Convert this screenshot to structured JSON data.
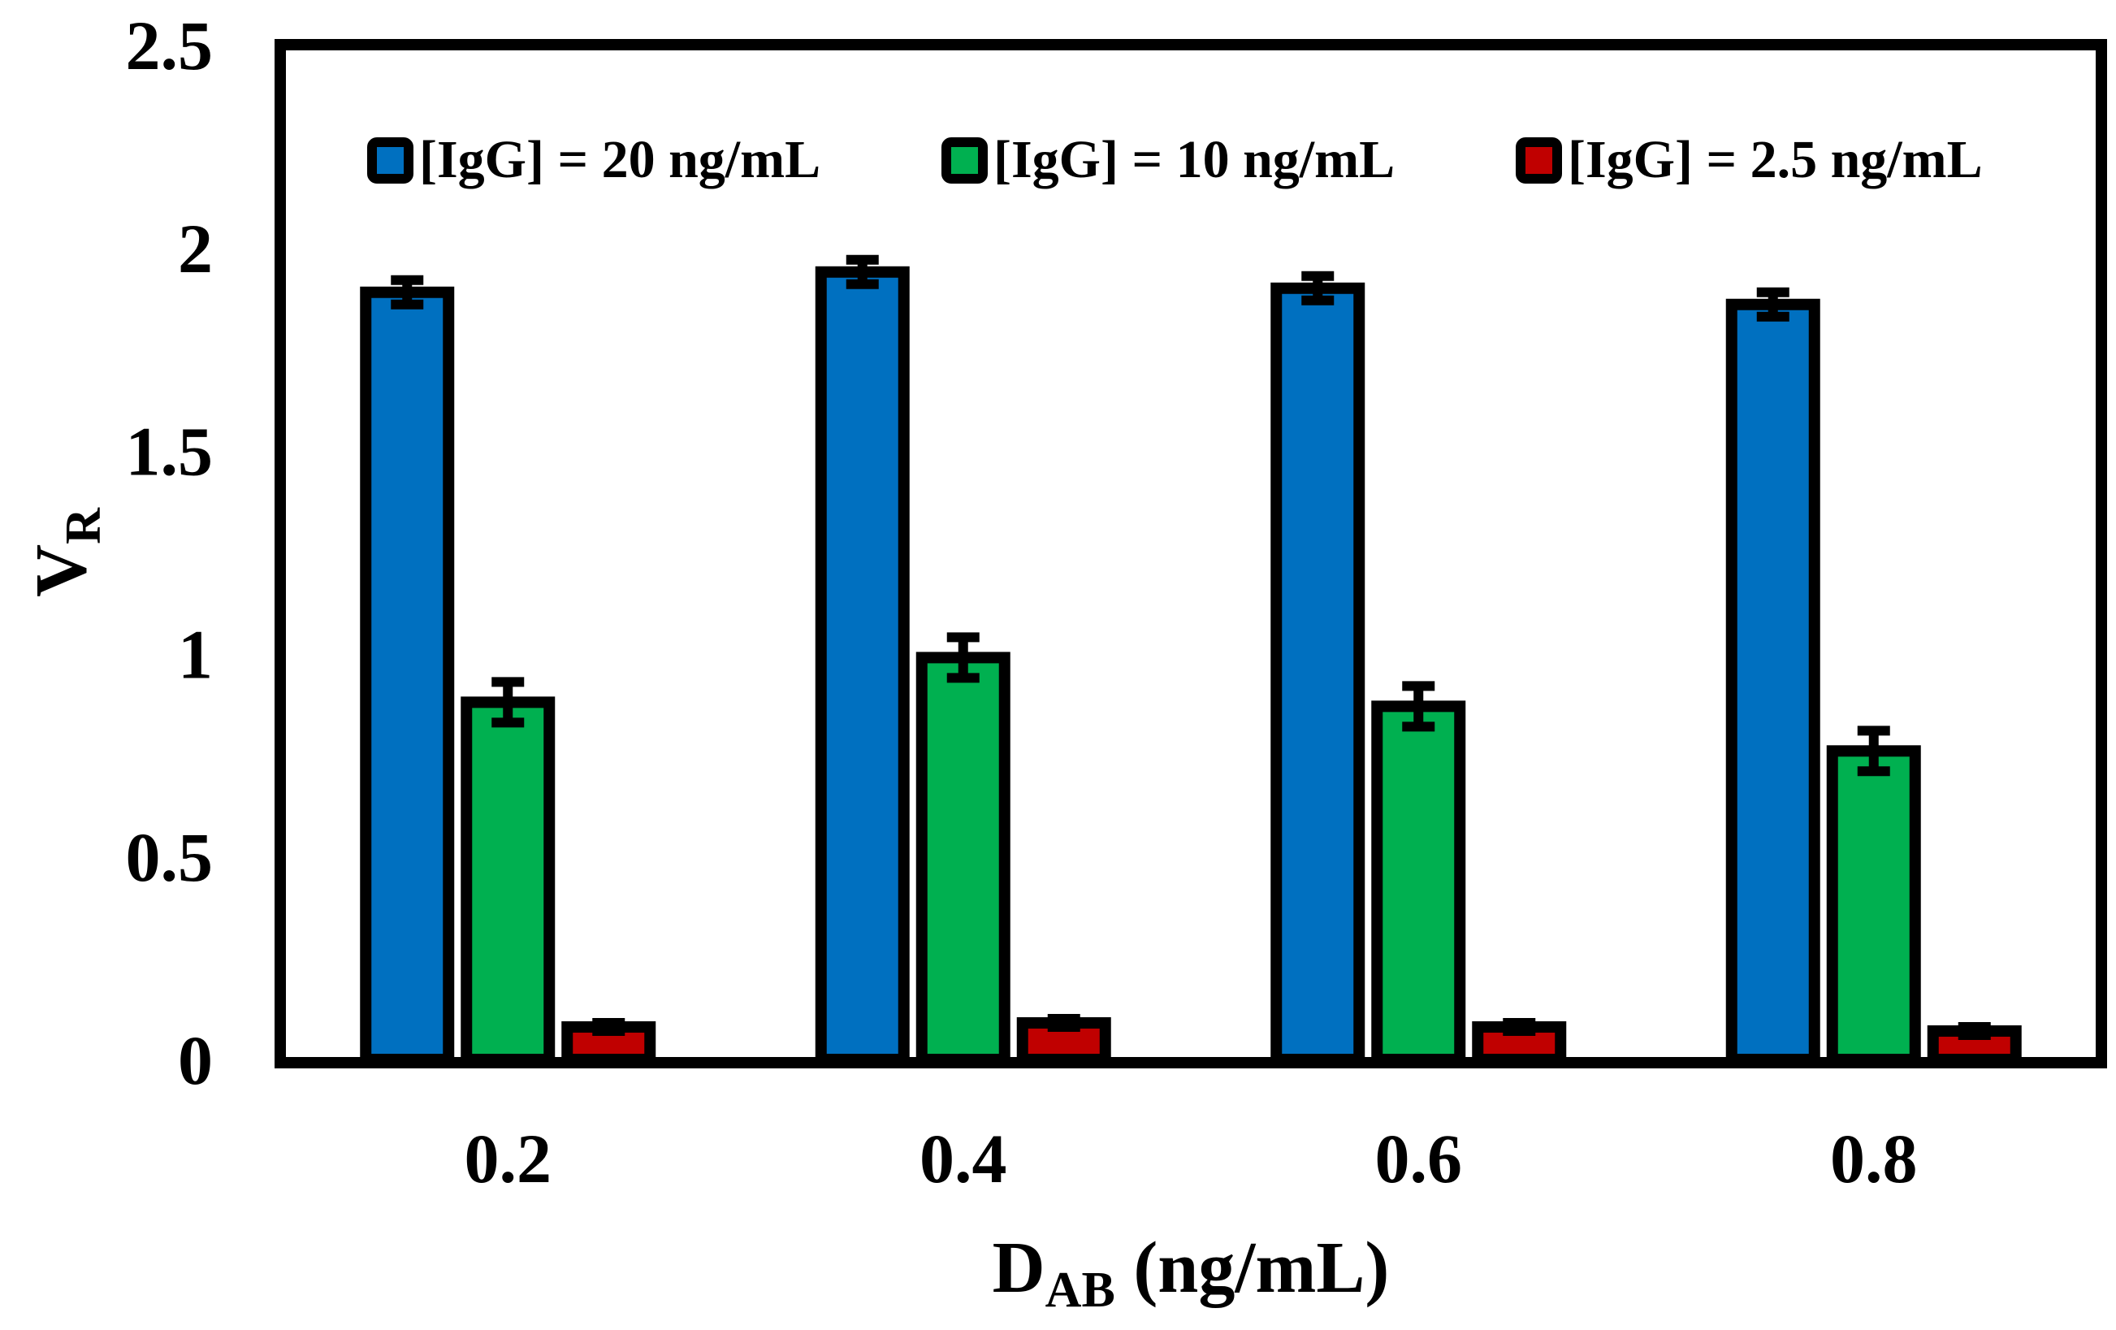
{
  "chart_data": {
    "type": "bar",
    "title": "",
    "xlabel": {
      "main": "D",
      "sub": "AB",
      "unit": " (ng/mL)"
    },
    "ylabel": {
      "main": "V",
      "sub": "R"
    },
    "categories": [
      "0.2",
      "0.4",
      "0.6",
      "0.8"
    ],
    "ylim": [
      0,
      2.5
    ],
    "yticks": [
      {
        "value": 0,
        "label": "0"
      },
      {
        "value": 0.5,
        "label": "0.5"
      },
      {
        "value": 1,
        "label": "1"
      },
      {
        "value": 1.5,
        "label": "1.5"
      },
      {
        "value": 2,
        "label": "2"
      },
      {
        "value": 2.5,
        "label": "2.5"
      }
    ],
    "grid": false,
    "legend_position": "top",
    "series": [
      {
        "name": "[IgG] = 20 ng/mL",
        "color": "#0070C0",
        "values": [
          1.89,
          1.94,
          1.9,
          1.86
        ],
        "errors": [
          0.03,
          0.03,
          0.03,
          0.03
        ]
      },
      {
        "name": "[IgG] = 10 ng/mL",
        "color": "#00B050",
        "values": [
          0.88,
          0.99,
          0.87,
          0.76
        ],
        "errors": [
          0.05,
          0.05,
          0.05,
          0.05
        ]
      },
      {
        "name": "[IgG] = 2.5 ng/mL",
        "color": "#C00000",
        "values": [
          0.08,
          0.09,
          0.08,
          0.07
        ],
        "errors": [
          0.01,
          0.01,
          0.01,
          0.01
        ]
      }
    ]
  }
}
